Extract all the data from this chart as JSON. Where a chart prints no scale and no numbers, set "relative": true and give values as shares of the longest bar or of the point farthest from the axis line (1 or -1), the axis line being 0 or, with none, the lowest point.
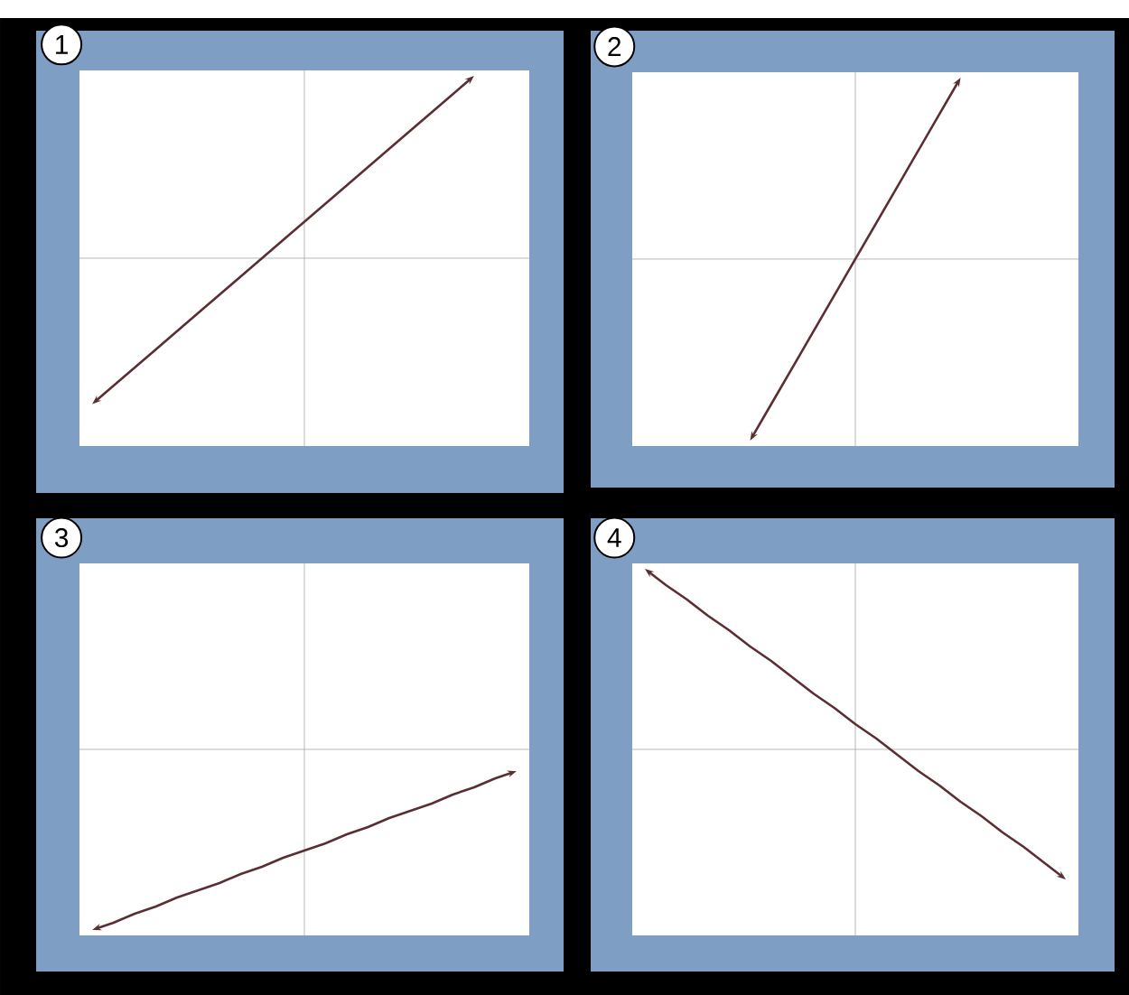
{
  "chart_data": [
    {
      "type": "line",
      "title": "1",
      "relative": true,
      "tick_labels": false,
      "categories": [
        null,
        null,
        null,
        null,
        null,
        null,
        null,
        null,
        null,
        null,
        null,
        null,
        null,
        null,
        null,
        null,
        null,
        null,
        null,
        null,
        null
      ],
      "series": [
        {
          "color": "#5a2e32",
          "values": [
            -0.8,
            -0.7,
            -0.6,
            -0.5,
            -0.4,
            -0.3,
            -0.2,
            -0.1,
            0.0,
            0.1,
            0.2,
            0.3,
            0.4,
            0.5,
            0.6,
            0.7,
            0.8,
            0.9,
            1.0,
            null,
            null
          ]
        }
      ]
    },
    {
      "type": "line",
      "title": "2",
      "relative": true,
      "tick_labels": false,
      "categories": [
        null,
        null,
        null,
        null,
        null,
        null,
        null,
        null,
        null,
        null,
        null,
        null,
        null,
        null,
        null,
        null,
        null,
        null,
        null,
        null,
        null
      ],
      "series": [
        {
          "color": "#5a2e32",
          "values": [
            null,
            null,
            null,
            null,
            null,
            -1.0,
            -0.8,
            -0.6,
            -0.4,
            -0.2,
            0.0,
            0.2,
            0.4,
            0.6,
            0.8,
            1.0,
            null,
            null,
            null,
            null,
            null
          ]
        }
      ]
    },
    {
      "type": "line",
      "title": "3",
      "relative": true,
      "tick_labels": false,
      "categories": [
        null,
        null,
        null,
        null,
        null,
        null,
        null,
        null,
        null,
        null,
        null,
        null,
        null,
        null,
        null,
        null,
        null,
        null,
        null,
        null,
        null
      ],
      "series": [
        {
          "color": "#5a2e32",
          "values": [
            -1.0,
            -0.96,
            -0.91,
            -0.87,
            -0.82,
            -0.78,
            -0.74,
            -0.69,
            -0.65,
            -0.6,
            -0.56,
            -0.52,
            -0.47,
            -0.43,
            -0.38,
            -0.34,
            -0.3,
            -0.25,
            -0.21,
            -0.16,
            -0.12
          ]
        }
      ]
    },
    {
      "type": "line",
      "title": "4",
      "relative": true,
      "tick_labels": false,
      "categories": [
        null,
        null,
        null,
        null,
        null,
        null,
        null,
        null,
        null,
        null,
        null,
        null,
        null,
        null,
        null,
        null,
        null,
        null,
        null,
        null,
        null
      ],
      "series": [
        {
          "color": "#5a2e32",
          "values": [
            1.0,
            0.91,
            0.83,
            0.74,
            0.66,
            0.57,
            0.49,
            0.4,
            0.31,
            0.23,
            0.14,
            0.06,
            -0.03,
            -0.12,
            -0.2,
            -0.29,
            -0.37,
            -0.46,
            -0.54,
            -0.63,
            -0.72
          ]
        }
      ]
    }
  ]
}
